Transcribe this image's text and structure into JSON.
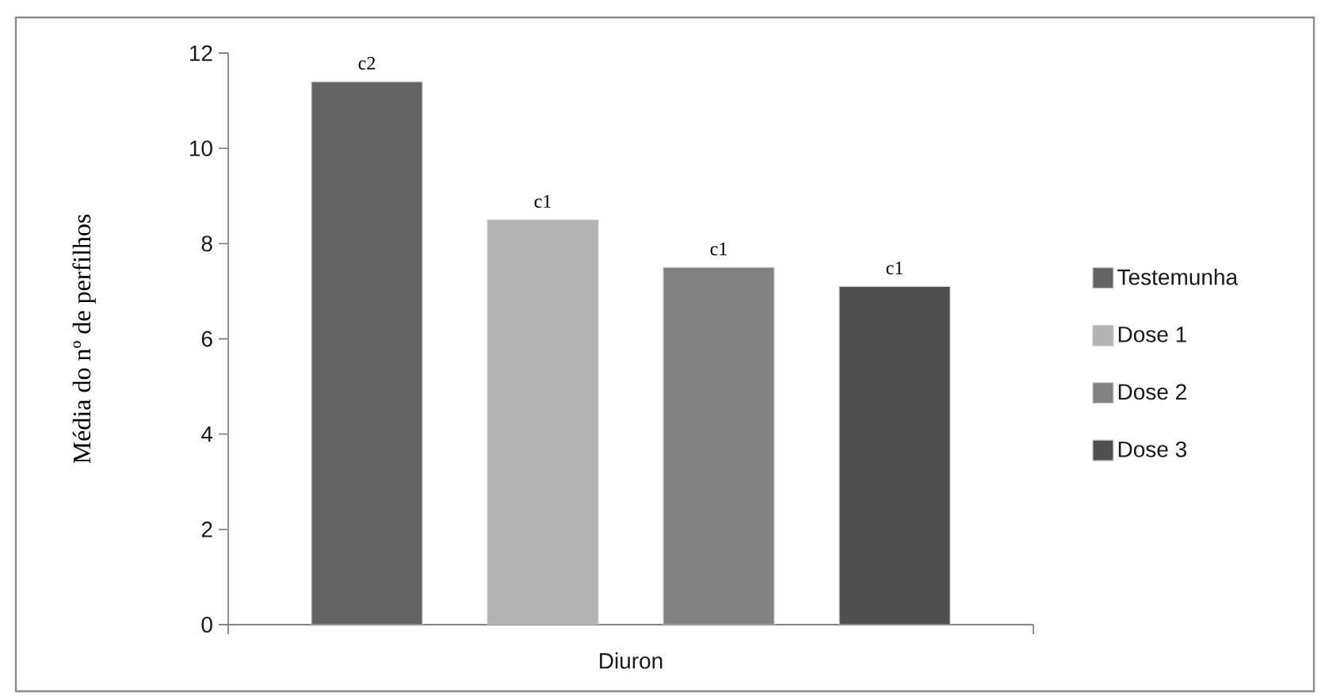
{
  "chart_data": {
    "type": "bar",
    "ylabel": "Média do nº de perfilhos",
    "categories": [
      "Diuron"
    ],
    "series": [
      {
        "name": "Testemunha",
        "color": "#636363",
        "values": [
          11.4
        ],
        "value_labels": [
          "c2"
        ]
      },
      {
        "name": "Dose 1",
        "color": "#b2b2b2",
        "values": [
          8.5
        ],
        "value_labels": [
          "c1"
        ]
      },
      {
        "name": "Dose 2",
        "color": "#818181",
        "values": [
          7.5
        ],
        "value_labels": [
          "c1"
        ]
      },
      {
        "name": "Dose 3",
        "color": "#4f4f4f",
        "values": [
          7.1
        ],
        "value_labels": [
          "c1"
        ]
      }
    ],
    "ylim": [
      0,
      12
    ],
    "yticks": [
      0,
      2,
      4,
      6,
      8,
      10,
      12
    ],
    "grid": false,
    "legend": "right"
  }
}
